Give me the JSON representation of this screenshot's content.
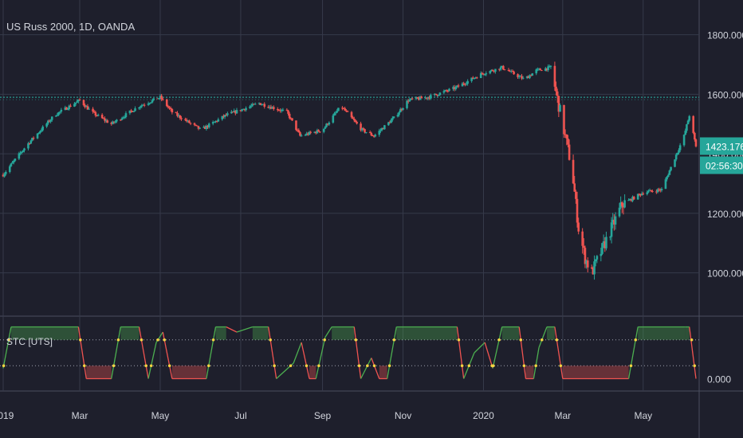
{
  "colors": {
    "background": "#1e1f2c",
    "grid": "#363a4a",
    "axis_text": "#d1d4dc",
    "up": "#26a69a",
    "down": "#ef5350",
    "level_line": "#2ab5a5",
    "stc_up": "#4caf50",
    "stc_down": "#ef5350",
    "stc_marker": "#f5d442",
    "badge": "#26a69a"
  },
  "price_pane": {
    "title": "US Russ 2000, 1D, OANDA",
    "y_ticks": [
      "1800.000",
      "1600.000",
      "1400.000",
      "1200.000",
      "1000.000"
    ],
    "y_tick_values": [
      1800,
      1600,
      1400,
      1200,
      1000
    ],
    "ylim": [
      860,
      1890
    ],
    "level_line_value": 1590,
    "last_price_label": "1423.176",
    "countdown_label": "02:56:30"
  },
  "stc_pane": {
    "title": "STC [UTS]",
    "y_ticks": [
      "0.000"
    ],
    "ylim": [
      -10,
      110
    ],
    "levels": [
      75,
      25
    ]
  },
  "x_axis": {
    "labels": [
      "2019",
      "Mar",
      "May",
      "Jul",
      "Sep",
      "Nov",
      "2020",
      "Mar",
      "May"
    ]
  },
  "chart_data": {
    "type": "candlestick",
    "title": "US Russ 2000, 1D, OANDA",
    "x_range": [
      "2019-01-02",
      "2020-06-10"
    ],
    "ylim": [
      860,
      1890
    ],
    "close_series_approx": {
      "x": [
        "2019-01-02",
        "2019-01-20",
        "2019-02-10",
        "2019-03-01",
        "2019-03-10",
        "2019-03-25",
        "2019-04-15",
        "2019-05-01",
        "2019-05-10",
        "2019-06-01",
        "2019-06-20",
        "2019-07-15",
        "2019-08-05",
        "2019-08-15",
        "2019-09-01",
        "2019-09-15",
        "2019-10-01",
        "2019-10-10",
        "2019-10-25",
        "2019-11-05",
        "2019-11-20",
        "2019-12-10",
        "2019-12-31",
        "2020-01-15",
        "2020-02-01",
        "2020-02-10",
        "2020-02-21",
        "2020-03-01",
        "2020-03-08",
        "2020-03-13",
        "2020-03-18",
        "2020-03-23",
        "2020-04-01",
        "2020-04-15",
        "2020-05-01",
        "2020-05-15",
        "2020-06-01",
        "2020-06-05",
        "2020-06-10"
      ],
      "y": [
        1330,
        1430,
        1530,
        1580,
        1540,
        1500,
        1560,
        1590,
        1540,
        1480,
        1530,
        1570,
        1540,
        1460,
        1480,
        1560,
        1480,
        1460,
        1520,
        1580,
        1590,
        1620,
        1670,
        1690,
        1650,
        1680,
        1690,
        1500,
        1350,
        1150,
        1050,
        1000,
        1090,
        1230,
        1270,
        1280,
        1460,
        1530,
        1423
      ]
    },
    "last_price": 1423.176,
    "horizontal_line": 1590,
    "indicator": {
      "name": "STC [UTS]",
      "ylim": [
        0,
        100
      ],
      "levels": [
        25,
        75
      ]
    }
  }
}
